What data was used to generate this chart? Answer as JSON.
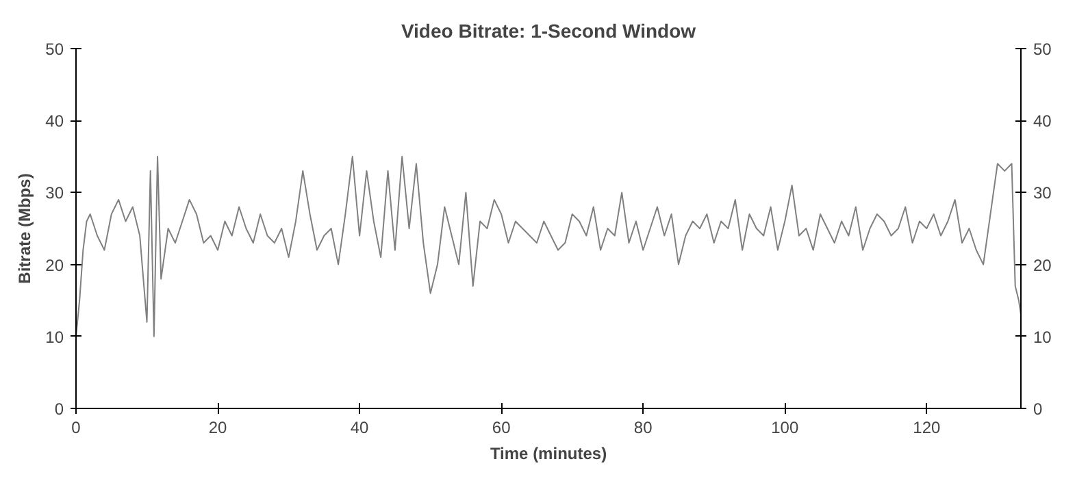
{
  "chart_data": {
    "type": "line",
    "title": "Video Bitrate: 1-Second Window",
    "xlabel": "Time (minutes)",
    "ylabel": "Bitrate (Mbps)",
    "x": [
      0,
      0.5,
      1,
      1.5,
      2,
      3,
      4,
      5,
      6,
      7,
      8,
      9,
      10,
      10.5,
      11,
      11.5,
      12,
      13,
      14,
      15,
      16,
      17,
      18,
      19,
      20,
      21,
      22,
      23,
      24,
      25,
      26,
      27,
      28,
      29,
      30,
      31,
      32,
      33,
      34,
      35,
      36,
      37,
      38,
      39,
      40,
      41,
      42,
      43,
      44,
      45,
      46,
      47,
      48,
      49,
      50,
      51,
      52,
      53,
      54,
      55,
      56,
      57,
      58,
      59,
      60,
      61,
      62,
      63,
      64,
      65,
      66,
      67,
      68,
      69,
      70,
      71,
      72,
      73,
      74,
      75,
      76,
      77,
      78,
      79,
      80,
      81,
      82,
      83,
      84,
      85,
      86,
      87,
      88,
      89,
      90,
      91,
      92,
      93,
      94,
      95,
      96,
      97,
      98,
      99,
      100,
      101,
      102,
      103,
      104,
      105,
      106,
      107,
      108,
      109,
      110,
      111,
      112,
      113,
      114,
      115,
      116,
      117,
      118,
      119,
      120,
      121,
      122,
      123,
      124,
      125,
      126,
      127,
      128,
      129,
      130,
      131,
      132,
      132.5,
      133,
      133.3
    ],
    "series": [
      {
        "color": "#808080",
        "values": [
          10,
          15,
          22,
          26,
          27,
          24,
          22,
          27,
          29,
          26,
          28,
          24,
          12,
          33,
          10,
          35,
          18,
          25,
          23,
          26,
          29,
          27,
          23,
          24,
          22,
          26,
          24,
          28,
          25,
          23,
          27,
          24,
          23,
          25,
          21,
          26,
          33,
          27,
          22,
          24,
          25,
          20,
          27,
          35,
          24,
          33,
          26,
          21,
          33,
          22,
          35,
          25,
          34,
          23,
          16,
          20,
          28,
          24,
          20,
          30,
          17,
          26,
          25,
          29,
          27,
          23,
          26,
          25,
          24,
          23,
          26,
          24,
          22,
          23,
          27,
          26,
          24,
          28,
          22,
          25,
          24,
          30,
          23,
          26,
          22,
          25,
          28,
          24,
          27,
          20,
          24,
          26,
          25,
          27,
          23,
          26,
          25,
          29,
          22,
          27,
          25,
          24,
          28,
          22,
          26,
          31,
          24,
          25,
          22,
          27,
          25,
          23,
          26,
          24,
          28,
          22,
          25,
          27,
          26,
          24,
          25,
          28,
          23,
          26,
          25,
          27,
          24,
          26,
          29,
          23,
          25,
          22,
          20,
          27,
          34,
          33,
          34,
          17,
          15,
          13
        ]
      }
    ],
    "xlim": [
      0,
      133.3
    ],
    "xticks": [
      0,
      20,
      40,
      60,
      80,
      100,
      120
    ],
    "ylim": [
      0,
      50
    ],
    "yticks": [
      0,
      10,
      20,
      30,
      40,
      50
    ],
    "y2lim": [
      0,
      50
    ],
    "y2ticks": [
      0,
      10,
      20,
      30,
      40,
      50
    ],
    "grid": false,
    "marker": "none",
    "line_style": "solid"
  }
}
